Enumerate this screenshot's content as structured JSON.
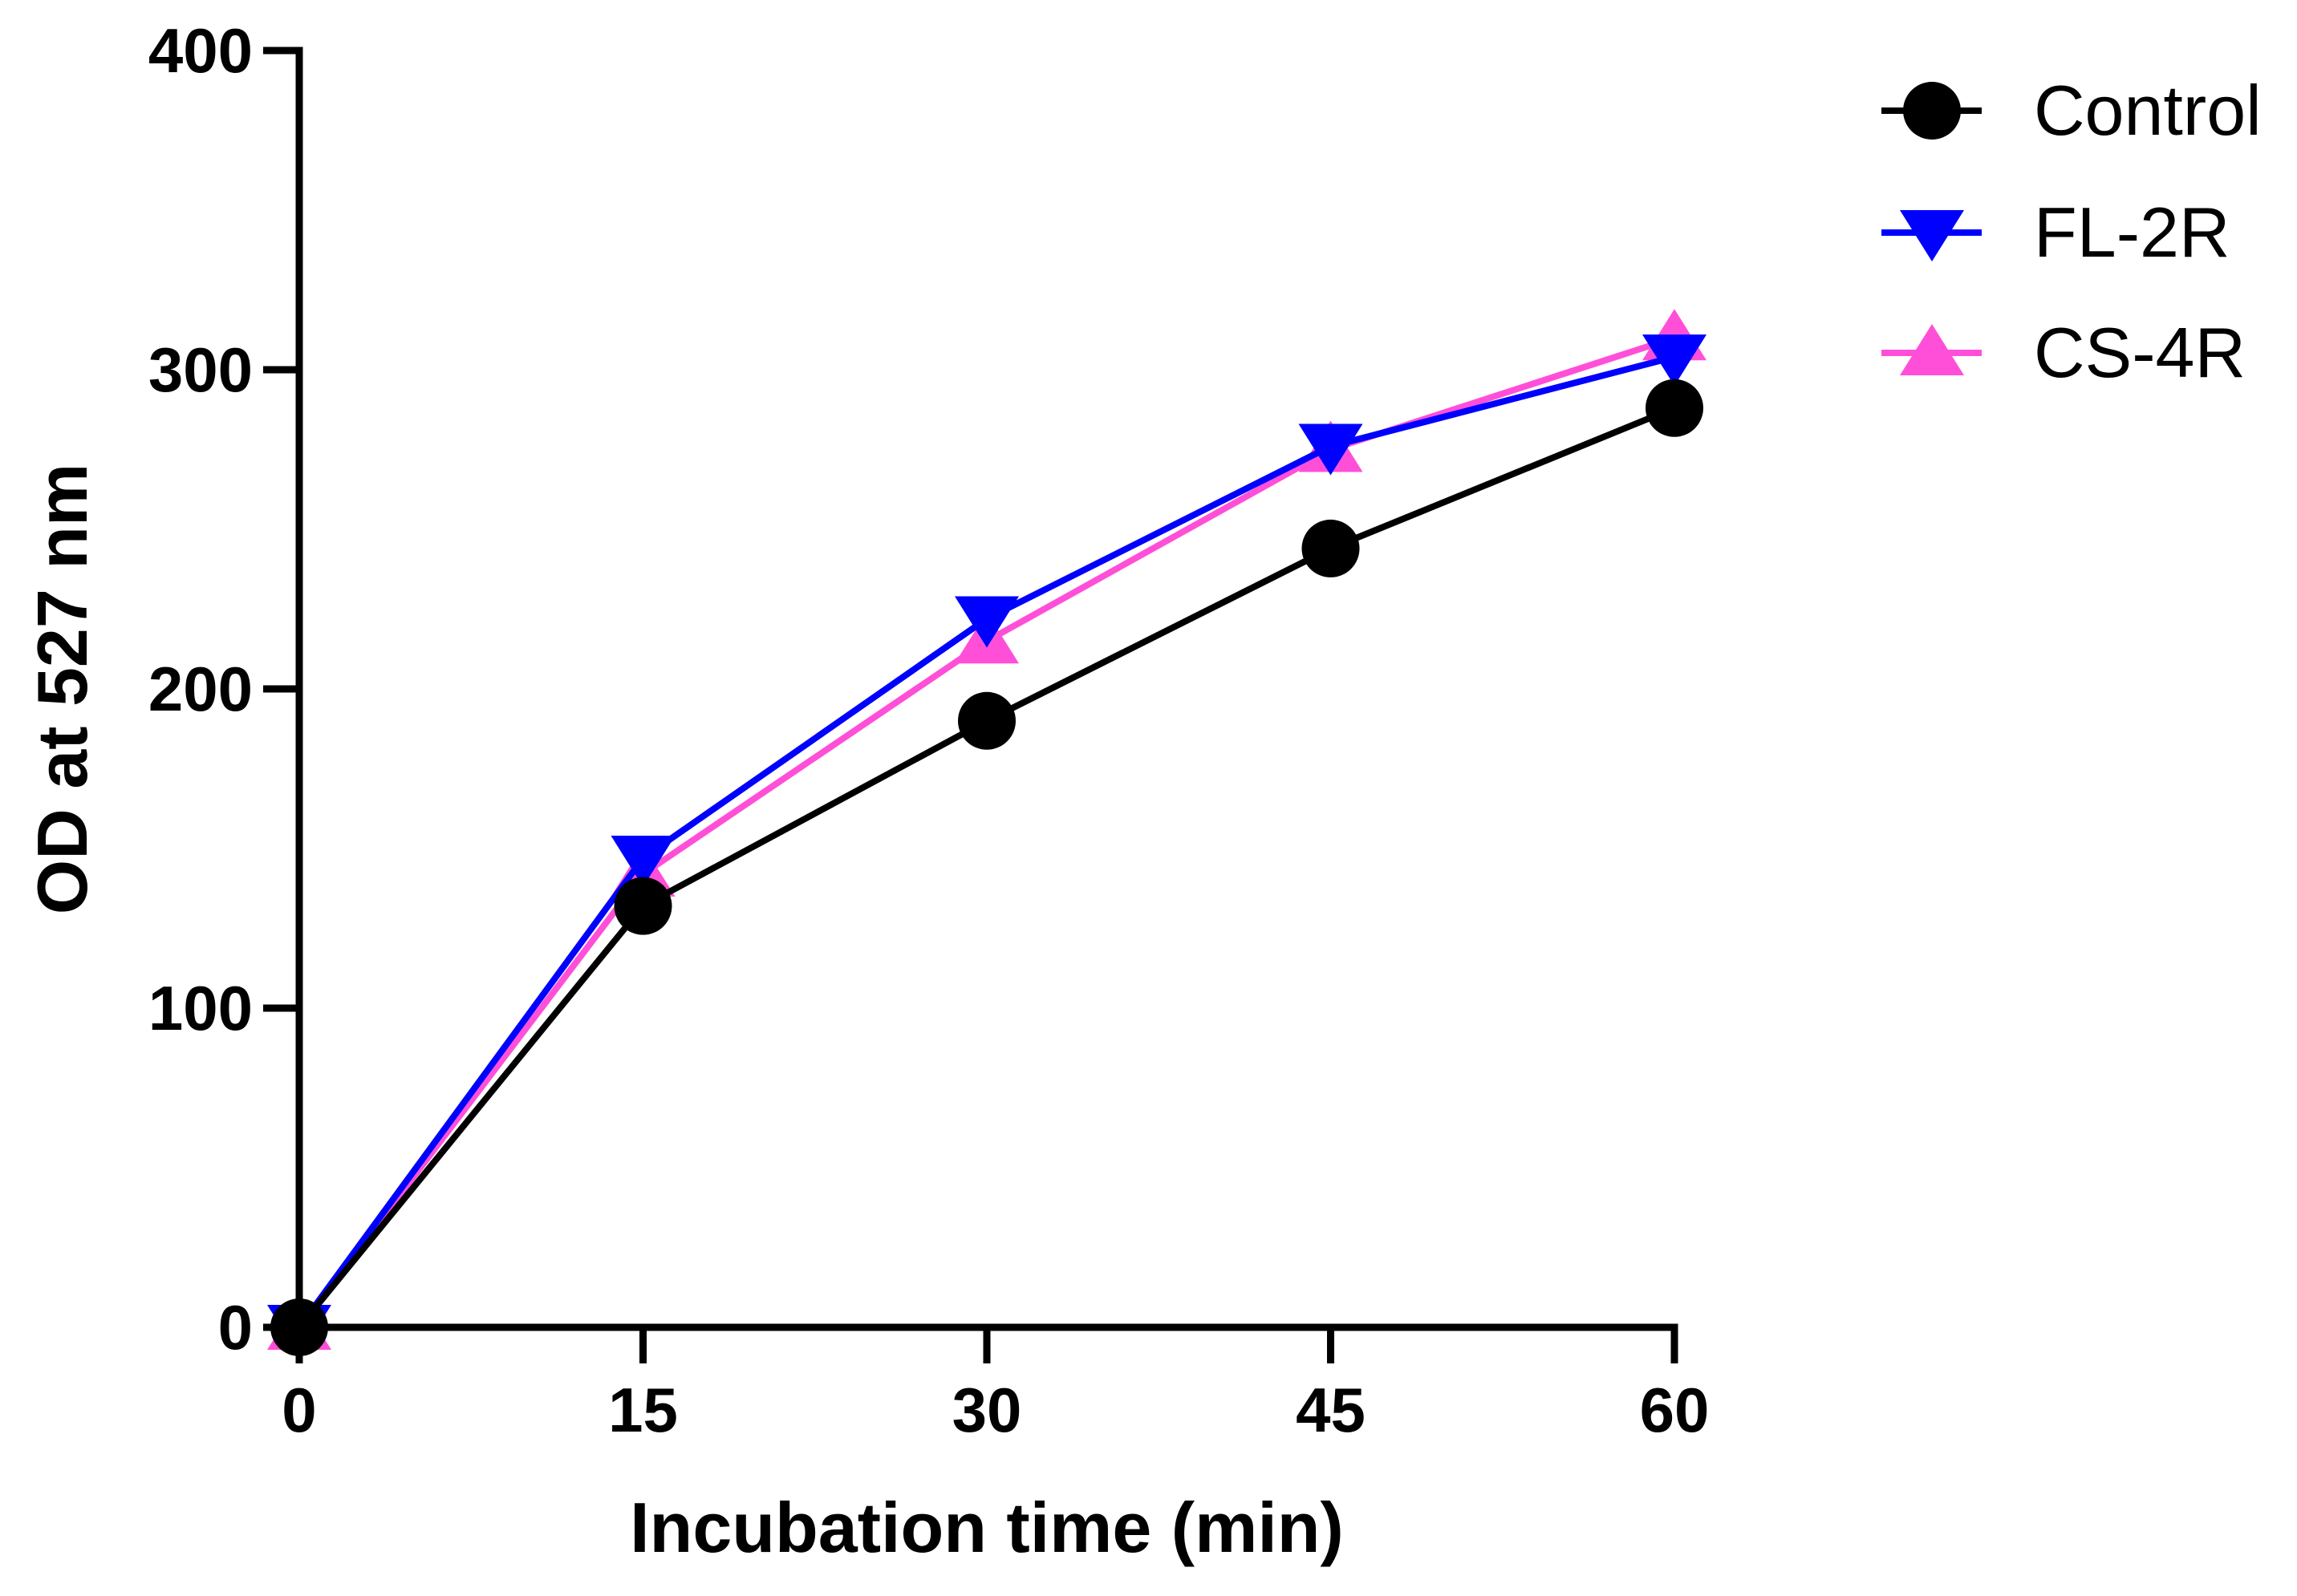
{
  "chart_data": {
    "type": "line",
    "title": "",
    "xlabel": "Incubation time (min)",
    "ylabel": "OD at 527 nm",
    "x": [
      0,
      15,
      30,
      45,
      60
    ],
    "xticks": [
      "0",
      "15",
      "30",
      "45",
      "60"
    ],
    "yticks": [
      "0",
      "100",
      "200",
      "300",
      "400"
    ],
    "xlim": [
      0,
      60
    ],
    "ylim": [
      0,
      400
    ],
    "grid": false,
    "legend_position": "top-right",
    "series": [
      {
        "name": "Control",
        "values": [
          0,
          132,
          190,
          244,
          288
        ],
        "color": "#000000",
        "marker": "circle"
      },
      {
        "name": "FL-2R",
        "values": [
          0,
          147,
          222,
          276,
          304
        ],
        "color": "#0000ff",
        "marker": "triangle-down"
      },
      {
        "name": "CS-4R",
        "values": [
          0,
          142,
          215,
          275,
          310
        ],
        "color": "#ff4fd8",
        "marker": "triangle-up"
      }
    ]
  }
}
